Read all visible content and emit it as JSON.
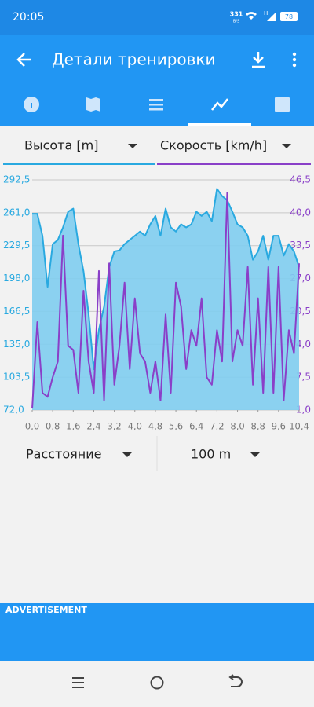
{
  "status_bar": {
    "time": "20:05",
    "net_speed": "331",
    "net_unit": "B/S",
    "signal": "H",
    "battery": "78"
  },
  "toolbar": {
    "title": "Детали тренировки"
  },
  "selectors": {
    "left": "Высота [m]",
    "right": "Скорость [km/h]"
  },
  "chart_data": {
    "type": "line",
    "x": [
      0,
      0.2,
      0.4,
      0.6,
      0.8,
      1.0,
      1.2,
      1.4,
      1.6,
      1.8,
      2.0,
      2.2,
      2.4,
      2.6,
      2.8,
      3.0,
      3.2,
      3.4,
      3.6,
      3.8,
      4.0,
      4.2,
      4.4,
      4.6,
      4.8,
      5.0,
      5.2,
      5.4,
      5.6,
      5.8,
      6.0,
      6.2,
      6.4,
      6.6,
      6.8,
      7.0,
      7.2,
      7.4,
      7.6,
      7.8,
      8.0,
      8.2,
      8.4,
      8.6,
      8.8,
      9.0,
      9.2,
      9.4,
      9.6,
      9.8,
      10.0,
      10.2,
      10.4
    ],
    "series": [
      {
        "name": "Высота [m]",
        "color": "#29a9e0",
        "fill": "#7fcdf0",
        "axis": "y",
        "values": [
          260,
          260,
          239,
          190,
          231,
          235,
          247,
          262,
          265,
          231,
          205,
          164,
          111,
          149,
          171,
          209,
          224,
          225,
          231,
          235,
          239,
          243,
          239,
          250,
          258,
          239,
          265,
          247,
          243,
          250,
          247,
          250,
          262,
          258,
          262,
          253,
          284,
          277,
          273,
          262,
          250,
          247,
          239,
          216,
          224,
          239,
          216,
          239,
          239,
          220,
          231,
          224,
          209
        ]
      },
      {
        "name": "Скорость [km/h]",
        "color": "#8a3fc8",
        "axis": "y2",
        "values": [
          1.3,
          18.4,
          4.4,
          3.6,
          7.5,
          10.6,
          35.5,
          13.7,
          12.9,
          4.4,
          24.6,
          10.6,
          4.4,
          28.5,
          2.9,
          30.0,
          6.0,
          13.7,
          26.2,
          9.1,
          23.1,
          12.2,
          10.6,
          4.4,
          10.6,
          2.9,
          19.9,
          4.4,
          26.2,
          21.5,
          9.1,
          16.8,
          13.7,
          23.1,
          7.5,
          6.0,
          16.8,
          10.6,
          44.0,
          10.6,
          16.8,
          13.7,
          29.3,
          6.0,
          23.1,
          4.4,
          29.3,
          4.4,
          29.3,
          2.9,
          16.8,
          12.2,
          30.0
        ]
      }
    ],
    "xlim": [
      0,
      10.4
    ],
    "xticks": [
      {
        "value": 0,
        "label": "0,0"
      },
      {
        "value": 0.8,
        "label": "0,8"
      },
      {
        "value": 1.6,
        "label": "1,6"
      },
      {
        "value": 2.4,
        "label": "2,4"
      },
      {
        "value": 3.2,
        "label": "3,2"
      },
      {
        "value": 4.0,
        "label": "4,0"
      },
      {
        "value": 4.8,
        "label": "4,8"
      },
      {
        "value": 5.6,
        "label": "5,6"
      },
      {
        "value": 6.4,
        "label": "6,4"
      },
      {
        "value": 7.2,
        "label": "7,2"
      },
      {
        "value": 8.0,
        "label": "8,0"
      },
      {
        "value": 8.8,
        "label": "8,8"
      },
      {
        "value": 9.6,
        "label": "9,6"
      },
      {
        "value": 10.4,
        "label": "10,4"
      }
    ],
    "ylim": [
      72,
      292.5
    ],
    "yticks": [
      {
        "value": 72,
        "label": "72,0"
      },
      {
        "value": 103.5,
        "label": "103,5"
      },
      {
        "value": 135,
        "label": "135,0"
      },
      {
        "value": 166.5,
        "label": "166,5"
      },
      {
        "value": 198,
        "label": "198,0"
      },
      {
        "value": 229.5,
        "label": "229,5"
      },
      {
        "value": 261,
        "label": "261,0"
      },
      {
        "value": 292.5,
        "label": "292,5"
      }
    ],
    "y2lim": [
      1,
      46.5
    ],
    "y2ticks": [
      {
        "value": 1,
        "label": "1,0"
      },
      {
        "value": 7.5,
        "label": "7,5"
      },
      {
        "value": 14,
        "label": "14,0"
      },
      {
        "value": 20.5,
        "label": "20,5"
      },
      {
        "value": 27,
        "label": "27,0"
      },
      {
        "value": 33.5,
        "label": "33,5"
      },
      {
        "value": 40,
        "label": "40,0"
      },
      {
        "value": 46.5,
        "label": "46,5"
      }
    ],
    "grid": true
  },
  "bottom_selectors": {
    "x_axis": "Расстояние",
    "interval": "100 m"
  },
  "ad": {
    "label": "ADVERTISEMENT"
  }
}
